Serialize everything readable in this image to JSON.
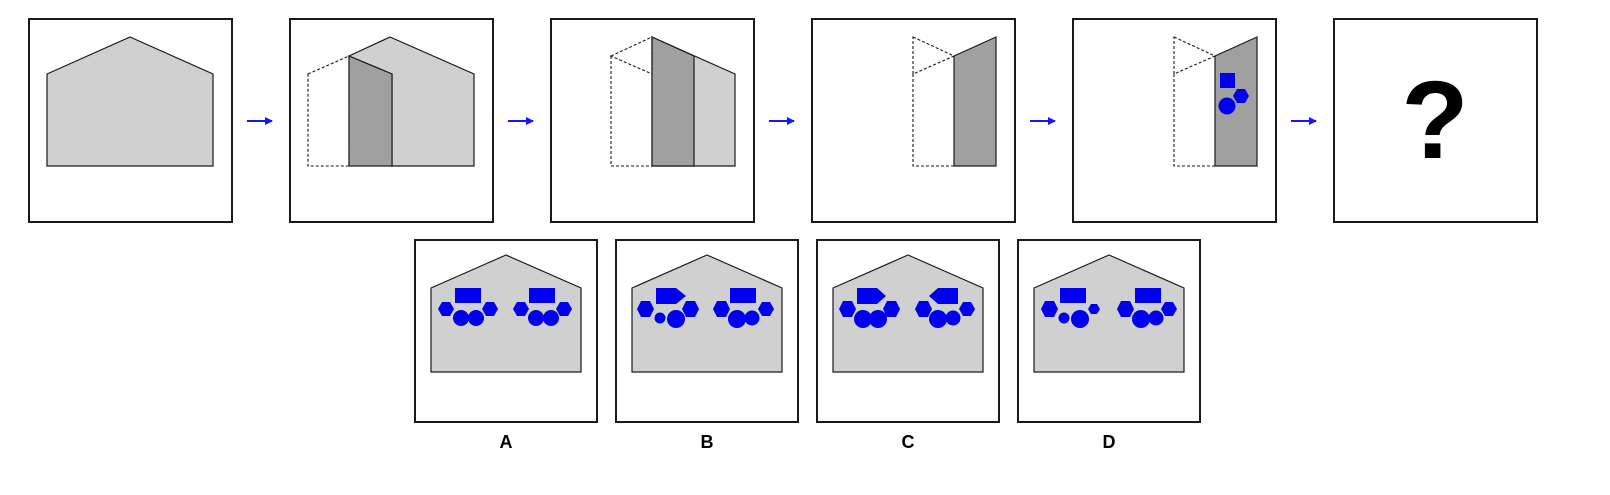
{
  "puzzle": {
    "question_mark": "?",
    "colors": {
      "light_gray": "#d0d0d0",
      "dark_gray": "#a0a0a0",
      "stroke": "#1a1a1a",
      "arrow": "#1515ff",
      "shape_blue": "#0000ee"
    },
    "options": [
      {
        "label": "A"
      },
      {
        "label": "B"
      },
      {
        "label": "C"
      },
      {
        "label": "D"
      }
    ]
  }
}
